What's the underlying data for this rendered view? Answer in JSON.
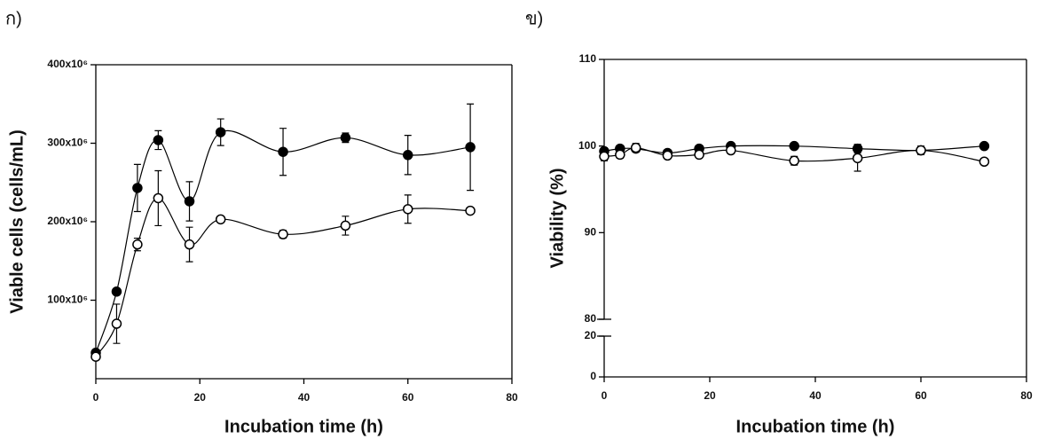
{
  "chart_data": [
    {
      "type": "line",
      "panel_label": "ก)",
      "x_label": "Incubation time (h)",
      "y_label": "Viable cells (cells/mL)",
      "xlim": [
        0,
        80
      ],
      "xticks": [
        0,
        20,
        40,
        60,
        80
      ],
      "ylim": [
        0,
        400000000
      ],
      "yticks": [
        {
          "value": 100000000,
          "label": "100x10⁶"
        },
        {
          "value": 200000000,
          "label": "200x10⁶"
        },
        {
          "value": 300000000,
          "label": "300x10⁶"
        },
        {
          "value": 400000000,
          "label": "400x10⁶"
        }
      ],
      "x": [
        0,
        4,
        8,
        12,
        18,
        24,
        36,
        48,
        60,
        72
      ],
      "series": [
        {
          "marker": "filled",
          "color": "#000000",
          "values": [
            33000000,
            111000000,
            243000000,
            304000000,
            226000000,
            314000000,
            289000000,
            307000000,
            285000000,
            295000000
          ],
          "errors": [
            4000000,
            4000000,
            30000000,
            12000000,
            25000000,
            17000000,
            30000000,
            6000000,
            25000000,
            55000000
          ]
        },
        {
          "marker": "open",
          "color": "#000000",
          "values": [
            28000000,
            70000000,
            171000000,
            230000000,
            171000000,
            203000000,
            184000000,
            195000000,
            216000000,
            214000000
          ],
          "errors": [
            4000000,
            25000000,
            8000000,
            35000000,
            22000000,
            4000000,
            5000000,
            12000000,
            18000000,
            3000000
          ]
        }
      ]
    },
    {
      "type": "line",
      "panel_label": "ข)",
      "x_label": "Incubation time (h)",
      "y_label": "Viability (%)",
      "xlim": [
        0,
        80
      ],
      "xticks": [
        0,
        20,
        40,
        60,
        80
      ],
      "ylim": [
        80,
        110
      ],
      "yticks": [
        80,
        90,
        100,
        110
      ],
      "lower_ylim": [
        0,
        20
      ],
      "lower_yticks": [
        0,
        20
      ],
      "x": [
        0,
        3,
        6,
        12,
        18,
        24,
        36,
        48,
        60,
        72
      ],
      "series": [
        {
          "marker": "filled",
          "color": "#000000",
          "values": [
            99.4,
            99.7,
            99.7,
            99.2,
            99.7,
            100,
            100,
            99.7,
            99.5,
            100
          ],
          "errors": [
            0.4,
            0.3,
            0.3,
            0.3,
            0.2,
            0.2,
            0.2,
            0.5,
            0.3,
            0.2
          ]
        },
        {
          "marker": "open",
          "color": "#000000",
          "values": [
            98.8,
            99.0,
            99.8,
            98.9,
            99.0,
            99.5,
            98.3,
            98.6,
            99.5,
            98.2
          ],
          "errors": [
            0.5,
            0.4,
            0.5,
            0.3,
            0.3,
            0.4,
            0.5,
            1.5,
            0.5,
            0.3
          ]
        }
      ]
    }
  ]
}
